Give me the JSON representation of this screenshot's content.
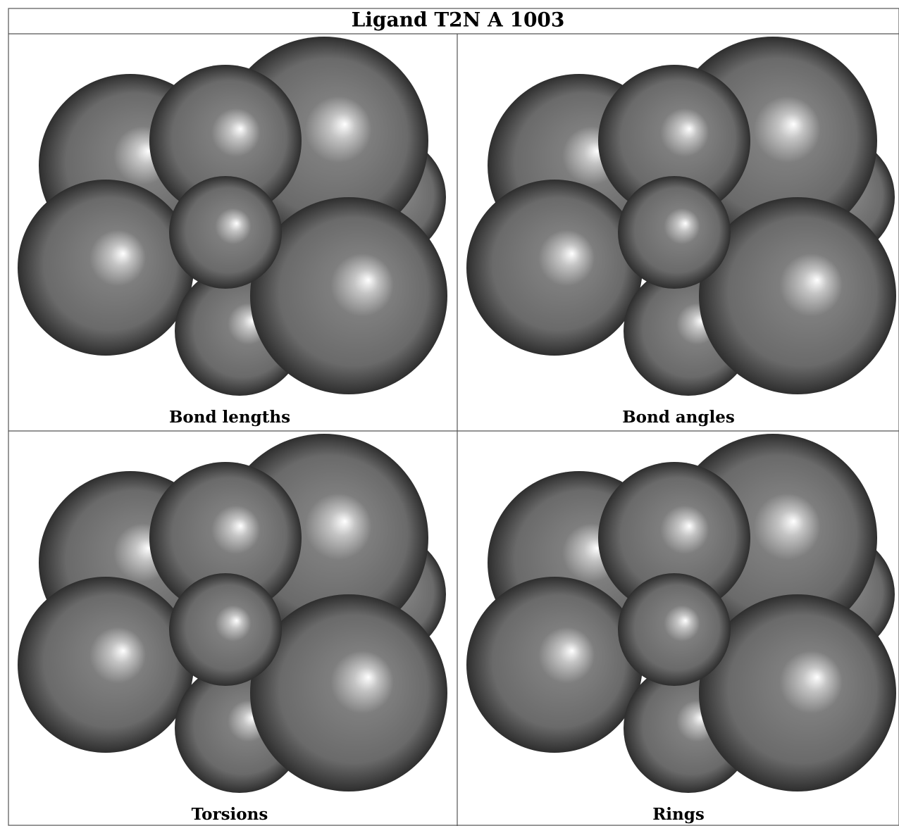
{
  "title": "Ligand T2N A 1003",
  "panels": [
    {
      "caption": "Bond lengths"
    },
    {
      "caption": "Bond angles"
    },
    {
      "caption": "Torsions"
    },
    {
      "caption": "Rings"
    }
  ]
}
